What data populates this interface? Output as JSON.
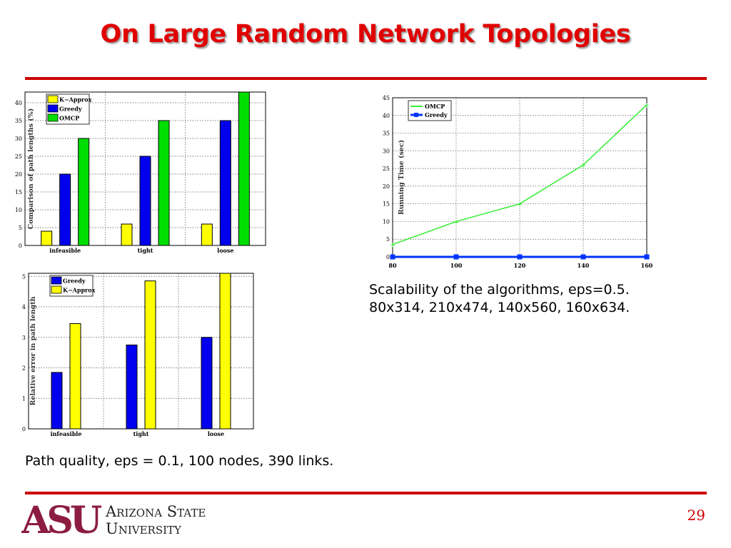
{
  "slide": {
    "title": "On Large Random Network Topologies",
    "page_number": "29",
    "caption_scalability": "Scalability of the algorithms, eps=0.5.",
    "caption_scalability_2": "80x314, 210x474, 140x560, 160x634.",
    "caption_quality": "Path quality, eps = 0.1, 100 nodes, 390 links.",
    "logo": {
      "mark": "ASU",
      "line1": "Arizona State",
      "line2": "University"
    },
    "colors": {
      "accent": "#cc0000",
      "title": "#e00000"
    }
  },
  "chart_data": [
    {
      "type": "bar",
      "ylabel": "Comparison of path lengths (%)",
      "categories": [
        "infeasible",
        "tight",
        "loose"
      ],
      "series": [
        {
          "name": "K−Approx",
          "color": "#ffff00",
          "values": [
            4,
            6,
            6
          ]
        },
        {
          "name": "Greedy",
          "color": "#0000ee",
          "values": [
            20,
            25,
            35
          ]
        },
        {
          "name": "OMCP",
          "color": "#00dd00",
          "values": [
            30,
            35,
            43
          ]
        }
      ],
      "ylim": [
        0,
        43
      ],
      "yticks": [
        0,
        5,
        10,
        15,
        20,
        25,
        30,
        35,
        40
      ],
      "grid": true,
      "legend": "top-left"
    },
    {
      "type": "line",
      "ylabel": "Running Time (sec)",
      "x": [
        80,
        100,
        120,
        140,
        160
      ],
      "series": [
        {
          "name": "OMCP",
          "color": "#33ee33",
          "values": [
            3.5,
            10,
            15,
            26,
            43
          ]
        },
        {
          "name": "Greedy",
          "color": "#0033ff",
          "values": [
            0,
            0,
            0,
            0,
            0
          ]
        }
      ],
      "xlim": [
        80,
        160
      ],
      "ylim": [
        0,
        45
      ],
      "xticks": [
        80,
        100,
        120,
        140,
        160
      ],
      "yticks": [
        0,
        5,
        10,
        15,
        20,
        25,
        30,
        35,
        40,
        45
      ],
      "grid": true,
      "legend": "top-left"
    },
    {
      "type": "bar",
      "ylabel": "Relative error in path length",
      "categories": [
        "infeasible",
        "tight",
        "loose"
      ],
      "series": [
        {
          "name": "Greedy",
          "color": "#0000ee",
          "values": [
            1.85,
            2.75,
            3.0
          ]
        },
        {
          "name": "K−Approx",
          "color": "#ffff00",
          "values": [
            3.45,
            4.85,
            5.1
          ]
        }
      ],
      "ylim": [
        0,
        5.1
      ],
      "yticks": [
        0,
        1,
        2,
        3,
        4,
        5
      ],
      "grid": true,
      "legend": "top-left"
    }
  ]
}
